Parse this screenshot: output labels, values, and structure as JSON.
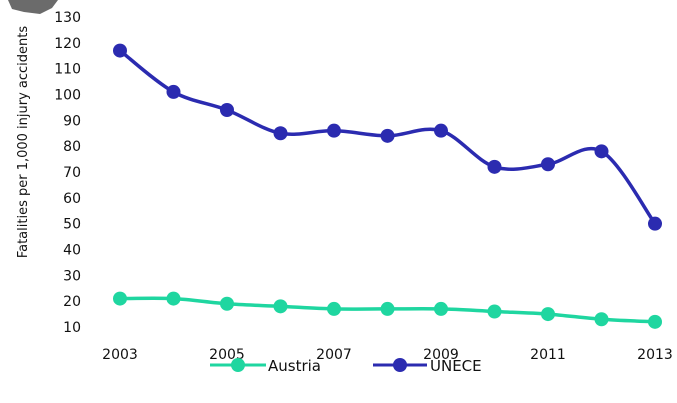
{
  "chart_data": {
    "type": "line",
    "x": [
      2003,
      2004,
      2005,
      2006,
      2007,
      2008,
      2009,
      2010,
      2011,
      2012,
      2013
    ],
    "x_tick_labels": [
      "2003",
      "2005",
      "2007",
      "2009",
      "2011",
      "2013"
    ],
    "y_tick_labels": [
      "10",
      "20",
      "30",
      "40",
      "50",
      "60",
      "70",
      "80",
      "90",
      "100",
      "110",
      "120",
      "130"
    ],
    "ylim": [
      10,
      130
    ],
    "ylabel": "Fatalities per 1,000 injury  accidents",
    "xlabel": "",
    "title": "",
    "grid": false,
    "legend_position": "bottom-center",
    "series": [
      {
        "name": "Austria",
        "color": "#1fd6a0",
        "values": [
          21,
          21,
          19,
          18,
          17,
          17,
          17,
          16,
          15,
          13,
          12
        ]
      },
      {
        "name": "UNECE",
        "color": "#2b2bb0",
        "values": [
          117,
          101,
          94,
          85,
          86,
          84,
          86,
          72,
          73,
          78,
          50
        ]
      }
    ]
  }
}
